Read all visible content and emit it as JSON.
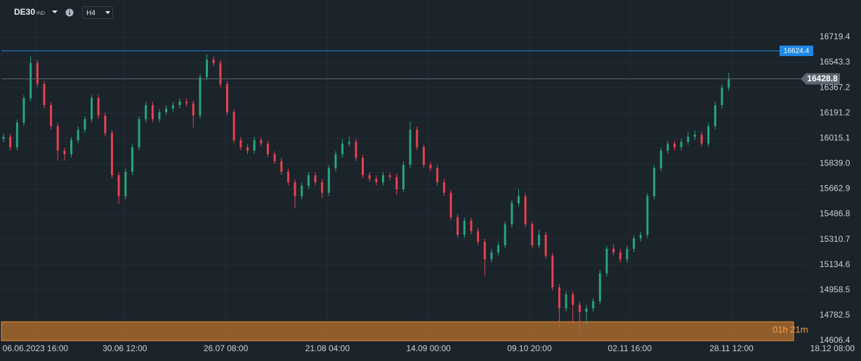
{
  "header": {
    "symbol": "DE30",
    "market": "IND",
    "timeframe": "H4"
  },
  "chart_data": {
    "type": "candlestick",
    "up_color": "#26a67a",
    "down_color": "#e8414f",
    "grid": true,
    "ylim": [
      14601,
      16978
    ],
    "yticks": [
      16719.4,
      16543.3,
      16367.2,
      16191.2,
      16015.1,
      {
        "value": 15839.0,
        "label": "15839.0"
      },
      15662.9,
      15486.8,
      15310.7,
      15134.6,
      14958.5,
      14782.5,
      14606.4
    ],
    "xlim": [
      -0.52,
      117.6
    ],
    "xticks": [
      {
        "value": 4.7,
        "label": "06.06.2023  16:00"
      },
      {
        "value": 17.9,
        "label": "30.06  12:00"
      },
      {
        "value": 32.8,
        "label": "26.07  08:00"
      },
      {
        "value": 47.8,
        "label": "21.08  04:00"
      },
      {
        "value": 62.7,
        "label": "14.09  00:00"
      },
      {
        "value": 77.6,
        "label": "09.10  20:00"
      },
      {
        "value": 92.4,
        "label": "02.11  16:00"
      },
      {
        "value": 107.4,
        "label": "28.11  12:00"
      },
      {
        "value": 122.3,
        "label": "18.12  08:00"
      }
    ],
    "open": [
      16010,
      16026,
      15953,
      16124,
      16295,
      16539,
      16392,
      16246,
      16100,
      15929,
      15904,
      16002,
      16075,
      16148,
      16295,
      16173,
      16051,
      15758,
      15612,
      15782,
      15953,
      16148,
      16246,
      16148,
      16197,
      16222,
      16246,
      16270,
      16258,
      16173,
      16441,
      16563,
      16539,
      16392,
      16197,
      16002,
      15953,
      15929,
      16002,
      15978,
      15904,
      15856,
      15782,
      15709,
      15612,
      15685,
      15758,
      15709,
      15636,
      15807,
      15904,
      15978,
      15990,
      15880,
      15758,
      15734,
      15709,
      15758,
      15745,
      15660,
      15831,
      16075,
      15953,
      15831,
      15807,
      15709,
      15636,
      15465,
      15343,
      15441,
      15368,
      15294,
      15172,
      15221,
      15270,
      15416,
      15563,
      15612,
      15416,
      15270,
      15343,
      15197,
      14977,
      14831,
      14928,
      14855,
      14806,
      14831,
      14880,
      15075,
      15246,
      15221,
      15172,
      15246,
      15319,
      15343,
      15612,
      15807,
      15929,
      15978,
      15953,
      15990,
      16026,
      16040,
      15978,
      16100,
      16246,
      16368
    ],
    "high": [
      16048,
      16048,
      16146,
      16317,
      16585,
      16561,
      16414,
      16268,
      16122,
      15951,
      16024,
      16097,
      16170,
      16317,
      16317,
      16195,
      16073,
      15780,
      15804,
      15975,
      16170,
      16268,
      16268,
      16219,
      16244,
      16268,
      16292,
      16292,
      16280,
      16463,
      16600,
      16585,
      16561,
      16414,
      16219,
      16024,
      15975,
      16024,
      16024,
      16000,
      15926,
      15878,
      15804,
      15731,
      15707,
      15780,
      15780,
      15731,
      15829,
      15926,
      16010,
      16025,
      16012,
      15902,
      15780,
      15756,
      15780,
      15780,
      15767,
      15853,
      16130,
      16097,
      15975,
      15853,
      15829,
      15731,
      15658,
      15487,
      15463,
      15463,
      15390,
      15316,
      15243,
      15292,
      15438,
      15585,
      15660,
      15634,
      15438,
      15380,
      15365,
      15219,
      14999,
      14950,
      14950,
      14877,
      14853,
      14902,
      15097,
      15268,
      15280,
      15243,
      15268,
      15341,
      15365,
      15634,
      15829,
      15951,
      16000,
      16000,
      16012,
      16060,
      16070,
      16062,
      16122,
      16268,
      16390,
      16470
    ],
    "low": [
      15988,
      15931,
      15931,
      16102,
      16273,
      16370,
      16224,
      16078,
      15860,
      15860,
      15882,
      15980,
      16053,
      16126,
      16151,
      16029,
      15736,
      15560,
      15590,
      15760,
      15931,
      16126,
      16126,
      16126,
      16175,
      16200,
      16224,
      16236,
      16090,
      16151,
      16419,
      16517,
      16370,
      16175,
      15980,
      15931,
      15907,
      15907,
      15956,
      15882,
      15834,
      15760,
      15687,
      15530,
      15590,
      15663,
      15687,
      15600,
      15614,
      15785,
      15882,
      15956,
      15858,
      15736,
      15712,
      15687,
      15687,
      15723,
      15620,
      15638,
      15809,
      15931,
      15809,
      15785,
      15687,
      15614,
      15443,
      15321,
      15321,
      15346,
      15272,
      15060,
      15150,
      15199,
      15248,
      15394,
      15541,
      15394,
      15248,
      15248,
      15175,
      14955,
      14700,
      14809,
      14720,
      14660,
      14720,
      14809,
      14858,
      15053,
      15199,
      15150,
      15150,
      15224,
      15297,
      15321,
      15590,
      15785,
      15907,
      15931,
      15931,
      15968,
      16004,
      15956,
      15956,
      16078,
      16224,
      16346
    ],
    "close": [
      16026,
      15953,
      16124,
      16295,
      16539,
      16392,
      16246,
      16100,
      15929,
      15904,
      16002,
      16075,
      16148,
      16295,
      16173,
      16051,
      15758,
      15612,
      15782,
      15953,
      16148,
      16246,
      16148,
      16197,
      16222,
      16246,
      16270,
      16258,
      16173,
      16441,
      16563,
      16539,
      16392,
      16197,
      16002,
      15953,
      15929,
      16002,
      15978,
      15904,
      15856,
      15782,
      15709,
      15612,
      15685,
      15758,
      15709,
      15636,
      15807,
      15904,
      15978,
      15990,
      15880,
      15758,
      15734,
      15709,
      15758,
      15745,
      15660,
      15831,
      16075,
      15953,
      15831,
      15807,
      15709,
      15636,
      15465,
      15343,
      15441,
      15368,
      15294,
      15172,
      15221,
      15270,
      15416,
      15563,
      15612,
      15416,
      15270,
      15343,
      15197,
      14977,
      14831,
      14928,
      14855,
      14806,
      14831,
      14880,
      15075,
      15246,
      15221,
      15172,
      15246,
      15319,
      15343,
      15612,
      15807,
      15929,
      15978,
      15953,
      15990,
      16026,
      16040,
      15978,
      16100,
      16246,
      16368,
      16430
    ],
    "hline": {
      "value": 16624.4,
      "color": "#1e88e5"
    },
    "last_price": {
      "value": 16428.8,
      "color": "#5d6670"
    },
    "timer": "01h 21m"
  }
}
